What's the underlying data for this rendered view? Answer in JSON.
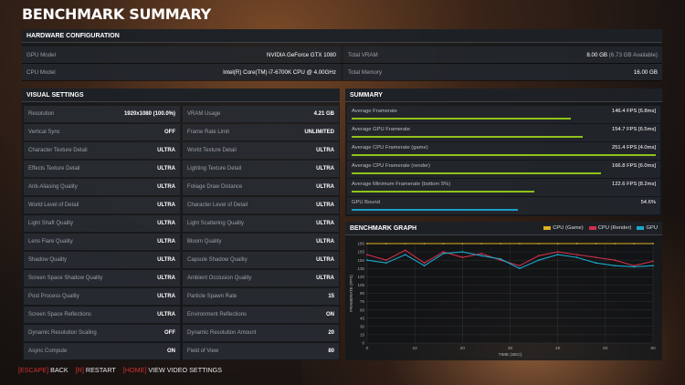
{
  "title": "BENCHMARK SUMMARY",
  "hardware": {
    "header": "HARDWARE CONFIGURATION",
    "gpu_label": "GPU Model",
    "gpu_value": "NVIDIA GeForce GTX 1080",
    "vram_label": "Total VRAM",
    "vram_value": "8.00 GB",
    "vram_available": "(6.73 GB Available)",
    "cpu_label": "CPU Model",
    "cpu_value": "Intel(R) Core(TM) i7-6700K CPU @ 4.00GHz",
    "mem_label": "Total Memory",
    "mem_value": "16.00 GB"
  },
  "visual": {
    "header": "VISUAL SETTINGS",
    "items": [
      {
        "label": "Resolution",
        "value": "1920x1080 (100.0%)"
      },
      {
        "label": "VRAM Usage",
        "value": "4.21 GB"
      },
      {
        "label": "Vertical Sync",
        "value": "OFF"
      },
      {
        "label": "Frame Rate Limit",
        "value": "UNLIMITED"
      },
      {
        "label": "Character Texture Detail",
        "value": "ULTRA"
      },
      {
        "label": "World Texture Detail",
        "value": "ULTRA"
      },
      {
        "label": "Effects Texture Detail",
        "value": "ULTRA"
      },
      {
        "label": "Lighting Texture Detail",
        "value": "ULTRA"
      },
      {
        "label": "Anti-Aliasing Quality",
        "value": "ULTRA"
      },
      {
        "label": "Foliage Draw Distance",
        "value": "ULTRA"
      },
      {
        "label": "World Level of Detail",
        "value": "ULTRA"
      },
      {
        "label": "Character Level of Detail",
        "value": "ULTRA"
      },
      {
        "label": "Light Shaft Quality",
        "value": "ULTRA"
      },
      {
        "label": "Light Scattering Quality",
        "value": "ULTRA"
      },
      {
        "label": "Lens Flare Quality",
        "value": "ULTRA"
      },
      {
        "label": "Bloom Quality",
        "value": "ULTRA"
      },
      {
        "label": "Shadow Quality",
        "value": "ULTRA"
      },
      {
        "label": "Capsule Shadow Quality",
        "value": "ULTRA"
      },
      {
        "label": "Screen Space Shadow Quality",
        "value": "ULTRA"
      },
      {
        "label": "Ambient Occlusion Quality",
        "value": "ULTRA"
      },
      {
        "label": "Post Process Quality",
        "value": "ULTRA"
      },
      {
        "label": "Particle Spawn Rate",
        "value": "15"
      },
      {
        "label": "Screen Space Reflections",
        "value": "ULTRA"
      },
      {
        "label": "Environment Reflections",
        "value": "ON"
      },
      {
        "label": "Dynamic Resolution Scaling",
        "value": "OFF"
      },
      {
        "label": "Dynamic Resolution Amount",
        "value": "20"
      },
      {
        "label": "Async Compute",
        "value": "ON"
      },
      {
        "label": "Field of View",
        "value": "80"
      }
    ]
  },
  "summary": {
    "header": "SUMMARY",
    "items": [
      {
        "label": "Average Framerate",
        "value": "146.4 FPS [6.8ms]",
        "fill": 0.72,
        "color": "#8fc21b"
      },
      {
        "label": "Average GPU Framerate",
        "value": "154.7 FPS [6.5ms]",
        "fill": 0.76,
        "color": "#8fc21b"
      },
      {
        "label": "Average CPU Framerate (game)",
        "value": "251.4 FPS [4.0ms]",
        "fill": 1.0,
        "color": "#8fc21b"
      },
      {
        "label": "Average CPU Framerate (render)",
        "value": "166.8 FPS [6.0ms]",
        "fill": 0.82,
        "color": "#8fc21b"
      },
      {
        "label": "Average Minimum Framerate (bottom 5%)",
        "value": "122.6 FPS [8.2ms]",
        "fill": 0.6,
        "color": "#8fc21b"
      },
      {
        "label": "GPU Bound",
        "value": "54.6%",
        "fill": 0.546,
        "color": "#1aa0c8"
      }
    ]
  },
  "graph": {
    "header": "BENCHMARK GRAPH",
    "legend": [
      {
        "label": "CPU (Game)",
        "color": "#e0b020"
      },
      {
        "label": "CPU (Render)",
        "color": "#d0304a"
      },
      {
        "label": "GPU",
        "color": "#1aa8c8"
      }
    ]
  },
  "chart_data": {
    "type": "line",
    "title": "",
    "xlabel": "TIME (SEC)",
    "ylabel": "FRAMERATE (FPS)",
    "xlim": [
      0,
      60
    ],
    "ylim": [
      0,
      180
    ],
    "x_ticks": [
      0,
      10,
      20,
      30,
      40,
      50,
      60
    ],
    "y_ticks": [
      0,
      15,
      30,
      45,
      60,
      75,
      90,
      105,
      120,
      135,
      150,
      165,
      180
    ],
    "grid": true,
    "legend_position": "top-right",
    "x": [
      0,
      4,
      8,
      12,
      16,
      20,
      24,
      28,
      32,
      36,
      40,
      44,
      48,
      52,
      56,
      60
    ],
    "series": [
      {
        "name": "CPU (Game)",
        "values": [
          180,
          180,
          180,
          180,
          180,
          180,
          180,
          180,
          180,
          180,
          180,
          180,
          180,
          180,
          180,
          180
        ]
      },
      {
        "name": "CPU (Render)",
        "values": [
          160,
          150,
          168,
          145,
          165,
          155,
          162,
          150,
          140,
          158,
          165,
          160,
          155,
          150,
          140,
          148
        ]
      },
      {
        "name": "GPU",
        "values": [
          150,
          145,
          160,
          140,
          162,
          165,
          158,
          152,
          135,
          150,
          160,
          155,
          145,
          140,
          138,
          140
        ]
      }
    ]
  },
  "footer": {
    "back_key": "[ESCAPE]",
    "back_label": "BACK",
    "restart_key": "[R]",
    "restart_label": "RESTART",
    "video_key": "[HOME]",
    "video_label": "VIEW VIDEO SETTINGS"
  }
}
